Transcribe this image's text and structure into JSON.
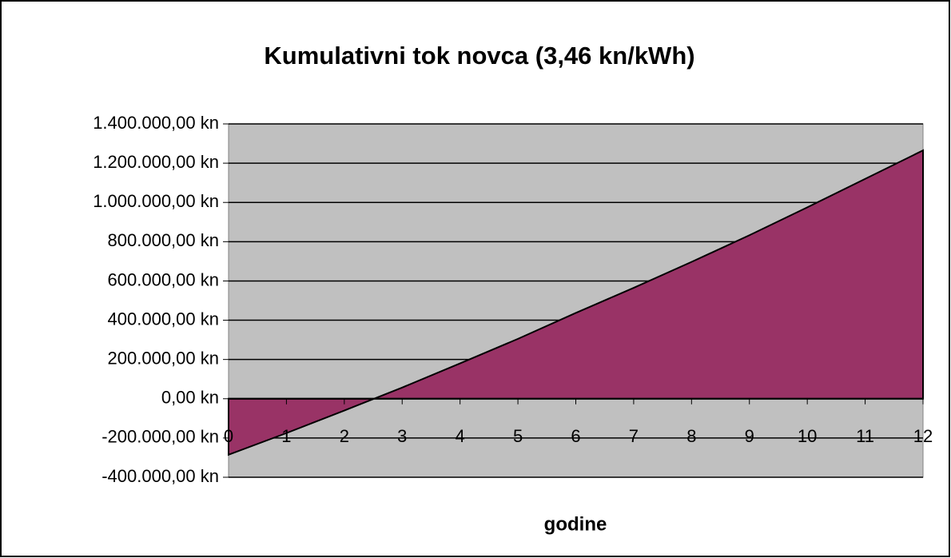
{
  "chart_data": {
    "type": "area",
    "title": "Kumulativni tok novca (3,46 kn/kWh)",
    "x_label": "godine",
    "categories": [
      "0",
      "1",
      "2",
      "3",
      "4",
      "5",
      "6",
      "7",
      "8",
      "9",
      "10",
      "11",
      "12"
    ],
    "series": [
      {
        "color": "#993366",
        "values": [
          -285000,
          -175000,
          -60000,
          57000,
          180000,
          305000,
          437000,
          565000,
          697000,
          833000,
          975000,
          1120000,
          1265000
        ]
      }
    ],
    "ylim": [
      -400000,
      1400000
    ],
    "yticks": [
      {
        "value": -400000,
        "label": "-400.000,00 kn"
      },
      {
        "value": -200000,
        "label": "-200.000,00 kn"
      },
      {
        "value": 0,
        "label": "0,00 kn"
      },
      {
        "value": 200000,
        "label": "200.000,00 kn"
      },
      {
        "value": 400000,
        "label": "400.000,00 kn"
      },
      {
        "value": 600000,
        "label": "600.000,00 kn"
      },
      {
        "value": 800000,
        "label": "800.000,00 kn"
      },
      {
        "value": 1000000,
        "label": "1.000.000,00 kn"
      },
      {
        "value": 1200000,
        "label": "1.200.000,00 kn"
      },
      {
        "value": 1400000,
        "label": "1.400.000,00 kn"
      }
    ],
    "negative_tick_color": "#ff0000",
    "plot_background": "#c0c0c0",
    "grid": true
  }
}
